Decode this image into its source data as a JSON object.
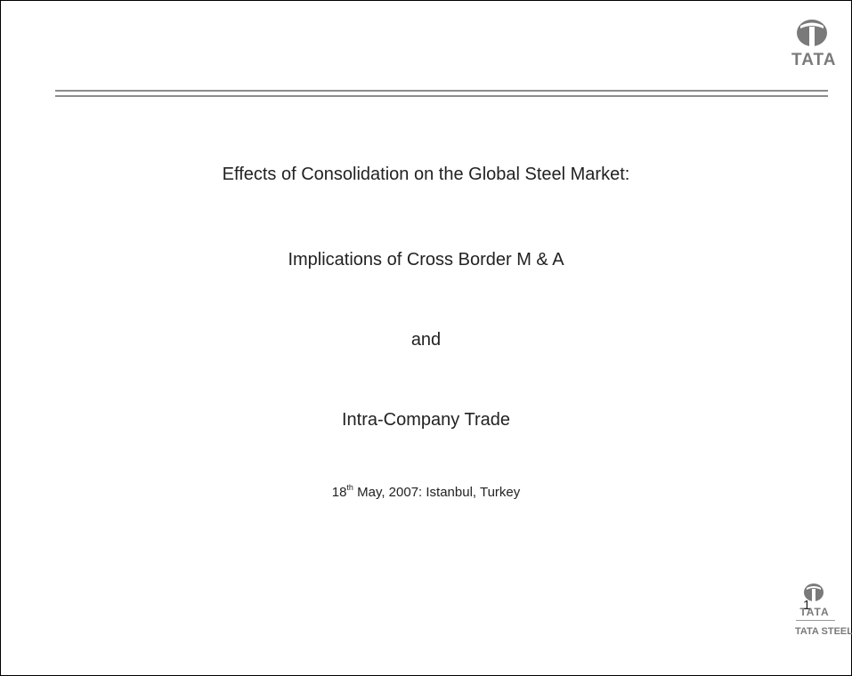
{
  "slide": {
    "title_lines": [
      "Effects of Consolidation on the Global Steel Market:",
      "Implications of Cross Border M & A",
      "and",
      "Intra-Company Trade"
    ],
    "date": {
      "day": "18",
      "suffix": "th",
      "rest": " May, 2007: Istanbul, Turkey"
    },
    "logo_top": "TATA",
    "logo_bottom": "TATA",
    "logo_bottom_company": "TATA STEEL",
    "page_number": "1"
  }
}
